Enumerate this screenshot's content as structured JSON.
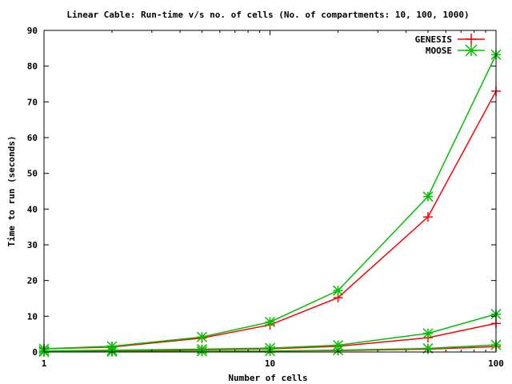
{
  "chart_data": {
    "type": "line",
    "title": "Linear Cable: Run-time v/s no. of cells (No. of compartments: 10, 100, 1000)",
    "xlabel": "Number of cells",
    "ylabel": "Time to run (seconds)",
    "xscale": "log",
    "xlim": [
      1,
      100
    ],
    "ylim": [
      0,
      90
    ],
    "x_ticks": [
      1,
      10,
      100
    ],
    "y_ticks": [
      0,
      10,
      20,
      30,
      40,
      50,
      60,
      70,
      80,
      90
    ],
    "grid": false,
    "legend_position": "top-right",
    "legend": [
      {
        "label": "GENESIS",
        "color": "#ff0000",
        "marker": "plus"
      },
      {
        "label": "MOOSE",
        "color": "#00c000",
        "marker": "star"
      }
    ],
    "x": [
      1,
      2,
      5,
      10,
      20,
      50,
      100
    ],
    "series": [
      {
        "legend_index": 0,
        "color": "#ff0000",
        "marker": "plus",
        "values": [
          0.9,
          1.4,
          3.9,
          7.6,
          15.2,
          37.8,
          73
        ]
      },
      {
        "legend_index": 1,
        "color": "#00c000",
        "marker": "star",
        "values": [
          0.9,
          1.6,
          4.2,
          8.4,
          17.2,
          43.5,
          83.2
        ]
      },
      {
        "color": "#ff0000",
        "marker": "plus",
        "values": [
          0.2,
          0.3,
          0.6,
          0.9,
          1.6,
          4.0,
          8.0
        ]
      },
      {
        "color": "#00c000",
        "marker": "star",
        "values": [
          0.3,
          0.5,
          0.8,
          1.1,
          1.9,
          5.2,
          10.6
        ]
      },
      {
        "color": "#ff0000",
        "marker": "plus",
        "values": [
          0.05,
          0.1,
          0.15,
          0.25,
          0.4,
          0.8,
          1.5
        ]
      },
      {
        "color": "#00c000",
        "marker": "star",
        "values": [
          0.05,
          0.1,
          0.2,
          0.3,
          0.5,
          1.0,
          2.0
        ]
      }
    ]
  }
}
